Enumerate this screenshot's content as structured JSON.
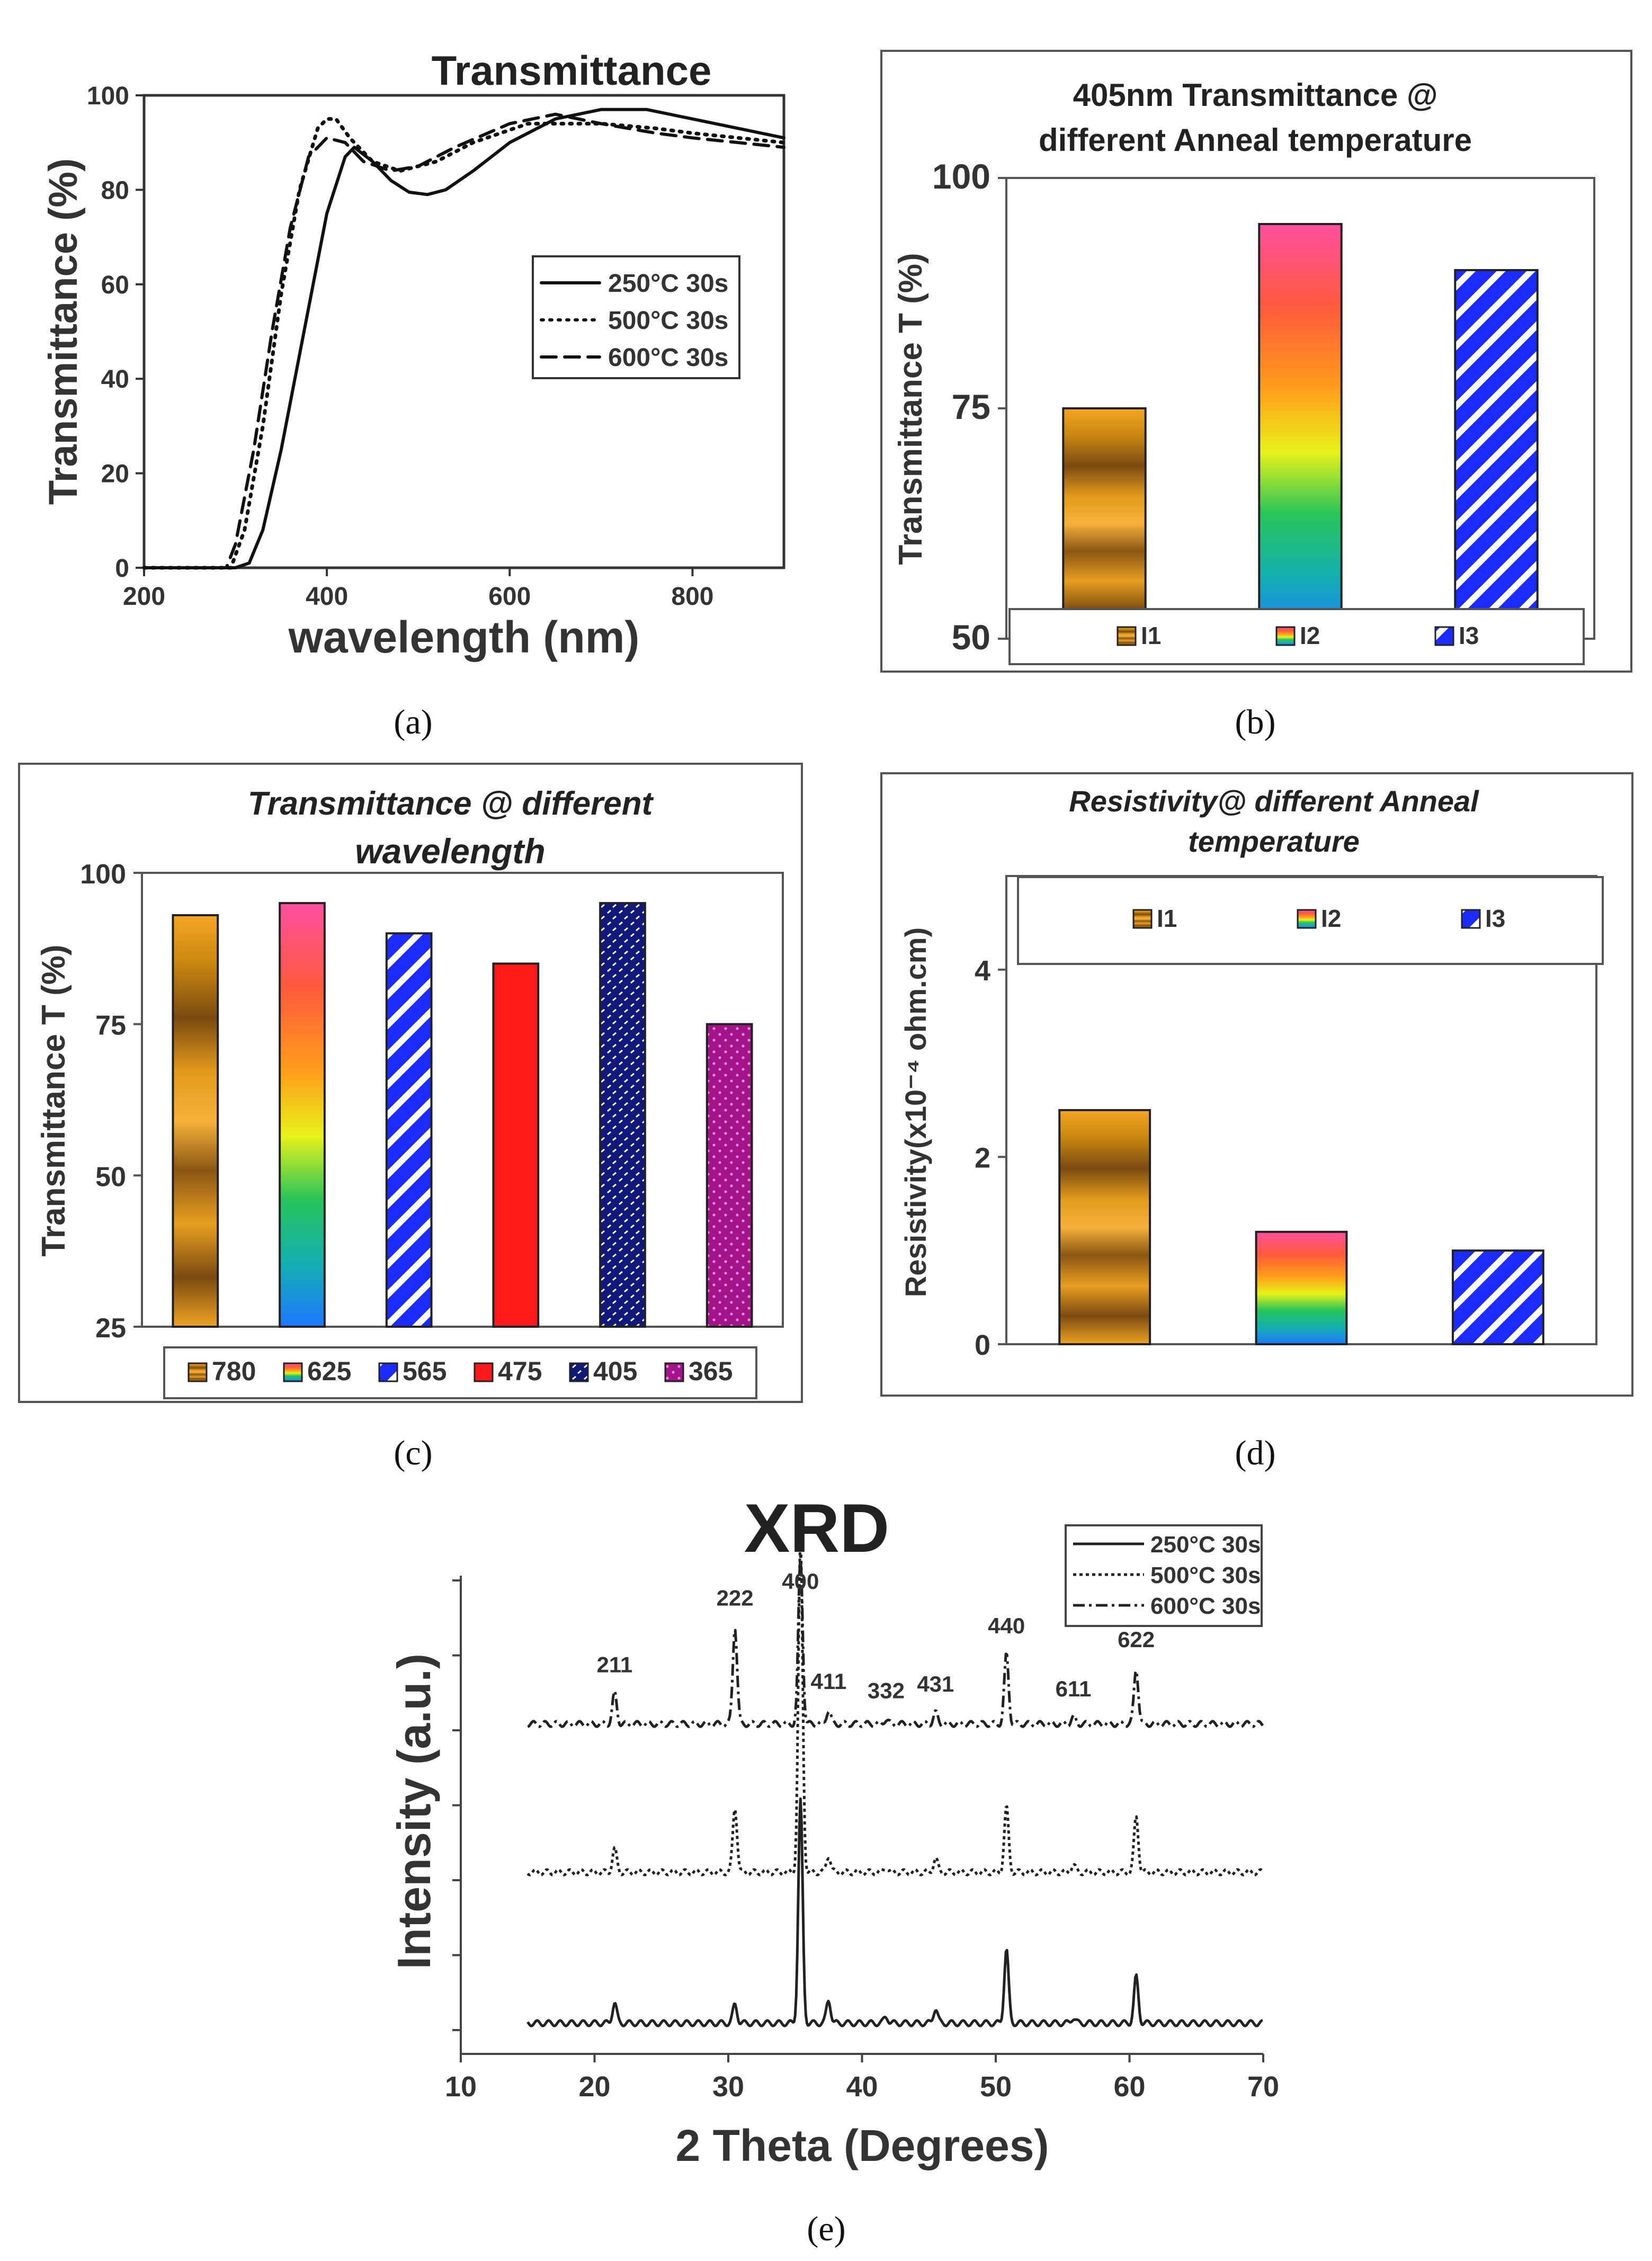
{
  "figure": {
    "captions": [
      "(a)",
      "(b)",
      "(c)",
      "(d)",
      "(e)"
    ]
  },
  "chart_data": [
    {
      "panel": "a",
      "type": "line",
      "title": "Transmittance",
      "xlabel": "wavelength (nm)",
      "ylabel": "Transmittance (%)",
      "xlim": [
        200,
        900
      ],
      "ylim": [
        0,
        100
      ],
      "xticks": [
        200,
        400,
        600,
        800
      ],
      "yticks": [
        0,
        20,
        40,
        60,
        80,
        100
      ],
      "legend_position": "middle-right",
      "series": [
        {
          "name": "250°C 30s",
          "style": "solid",
          "x": [
            200,
            300,
            315,
            330,
            350,
            375,
            400,
            420,
            430,
            450,
            470,
            490,
            510,
            530,
            560,
            600,
            650,
            700,
            750,
            800,
            850,
            900
          ],
          "y": [
            0,
            0,
            1,
            8,
            25,
            50,
            75,
            87,
            89,
            86,
            82,
            79.5,
            79,
            80,
            84,
            90,
            95,
            97,
            97,
            95,
            93,
            91
          ]
        },
        {
          "name": "500°C 30s",
          "style": "dotted",
          "x": [
            200,
            295,
            310,
            330,
            350,
            370,
            390,
            400,
            410,
            425,
            450,
            480,
            520,
            560,
            620,
            700,
            760,
            800,
            850,
            900
          ],
          "y": [
            0,
            0,
            8,
            30,
            58,
            80,
            93,
            95,
            95,
            91,
            86,
            84,
            86,
            90,
            94,
            94,
            93,
            92,
            91,
            90
          ]
        },
        {
          "name": "600°C 30s",
          "style": "dashed",
          "x": [
            200,
            290,
            300,
            320,
            340,
            360,
            380,
            400,
            420,
            440,
            470,
            500,
            540,
            600,
            650,
            700,
            760,
            800,
            850,
            900
          ],
          "y": [
            0,
            0,
            5,
            25,
            50,
            72,
            87,
            91,
            90,
            86,
            84,
            85,
            89,
            94,
            96,
            94,
            92,
            91,
            90,
            89
          ]
        }
      ]
    },
    {
      "panel": "b",
      "type": "bar",
      "title_lines": [
        "405nm Transmittance @",
        "different Anneal temperature"
      ],
      "ylabel": "Transmittance T (%)",
      "ylim": [
        50,
        100
      ],
      "yticks": [
        50,
        75,
        100
      ],
      "categories": [
        "I1",
        "I2",
        "I3"
      ],
      "values": [
        75,
        95,
        90
      ],
      "legend_position": "bottom"
    },
    {
      "panel": "c",
      "type": "bar",
      "title_lines": [
        "Transmittance @ different",
        "wavelength"
      ],
      "ylabel": "Transmittance T (%)",
      "ylim": [
        25,
        100
      ],
      "yticks": [
        25,
        50,
        75,
        100
      ],
      "categories": [
        "780",
        "625",
        "565",
        "475",
        "405",
        "365"
      ],
      "values": [
        93,
        95,
        90,
        85,
        95,
        75
      ],
      "legend_position": "bottom"
    },
    {
      "panel": "d",
      "type": "bar",
      "title_lines": [
        "Resistivity@ different Anneal",
        "temperature"
      ],
      "ylabel": "Resistivity(x10⁻⁴ ohm.cm)",
      "ylim": [
        0,
        5
      ],
      "yticks": [
        0,
        2,
        4
      ],
      "categories": [
        "I1",
        "I2",
        "I3"
      ],
      "values": [
        2.5,
        1.2,
        1.0
      ],
      "legend_position": "top"
    },
    {
      "panel": "e",
      "type": "line",
      "title": "XRD",
      "xlabel": "2 Theta (Degrees)",
      "ylabel": "Intensity (a.u.)",
      "xlim": [
        10,
        70
      ],
      "xticks": [
        10,
        20,
        30,
        40,
        50,
        60,
        70
      ],
      "y_offsets": [
        0,
        1,
        2
      ],
      "legend_position": "top-right",
      "peaks": [
        {
          "label": "211",
          "x": 21.5
        },
        {
          "label": "222",
          "x": 30.5
        },
        {
          "label": "400",
          "x": 35.4
        },
        {
          "label": "411",
          "x": 37.5
        },
        {
          "label": "332",
          "x": 41.8
        },
        {
          "label": "431",
          "x": 45.5
        },
        {
          "label": "440",
          "x": 50.8
        },
        {
          "label": "611",
          "x": 55.8
        },
        {
          "label": "622",
          "x": 60.5
        }
      ],
      "series": [
        {
          "name": "250°C 30s",
          "style": "solid",
          "intensities": [
            0.22,
            0.2,
            2.4,
            0.25,
            0.07,
            0.16,
            0.8,
            0.06,
            0.5
          ]
        },
        {
          "name": "500°C 30s",
          "style": "dotted",
          "intensities": [
            0.25,
            0.7,
            3.6,
            0.18,
            0.05,
            0.15,
            0.7,
            0.08,
            0.6
          ]
        },
        {
          "name": "600°C 30s",
          "style": "dashdot",
          "intensities": [
            0.33,
            1.05,
            1.8,
            0.15,
            0.05,
            0.12,
            0.75,
            0.07,
            0.6
          ]
        }
      ]
    }
  ]
}
